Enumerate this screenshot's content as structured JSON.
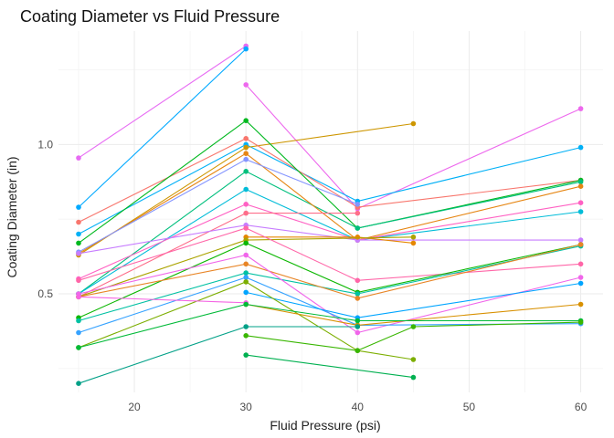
{
  "chart_data": {
    "type": "line",
    "title": "Coating Diameter vs Fluid Pressure",
    "xlabel": "Fluid Pressure (psi)",
    "ylabel": "Coating Diameter (in)",
    "xlim": [
      13.2,
      62.0
    ],
    "ylim": [
      0.17,
      1.38
    ],
    "x_ticks": [
      20,
      30,
      40,
      50,
      60
    ],
    "y_ticks": [
      0.5,
      1.0
    ],
    "y_tick_labels": [
      "0.5",
      "1.0"
    ],
    "grid": true,
    "legend": "none",
    "series": [
      {
        "color": "#e76bf3",
        "points": [
          [
            15,
            0.955
          ],
          [
            30,
            1.33
          ]
        ]
      },
      {
        "color": "#00a9ff",
        "points": [
          [
            15,
            0.79
          ],
          [
            30,
            1.32
          ]
        ]
      },
      {
        "color": "#ed68ed",
        "points": [
          [
            30,
            1.2
          ],
          [
            40,
            0.785
          ],
          [
            60,
            1.12
          ]
        ]
      },
      {
        "color": "#00b0f6",
        "points": [
          [
            15,
            0.7
          ],
          [
            30,
            1.0
          ],
          [
            40,
            0.81
          ],
          [
            60,
            0.99
          ]
        ]
      },
      {
        "color": "#cd9600",
        "points": [
          [
            15,
            0.63
          ],
          [
            30,
            0.99
          ],
          [
            45,
            1.07
          ]
        ]
      },
      {
        "color": "#f8766d",
        "points": [
          [
            15,
            0.74
          ],
          [
            30,
            1.02
          ],
          [
            40,
            0.79
          ],
          [
            60,
            0.88
          ]
        ]
      },
      {
        "color": "#00b81f",
        "points": [
          [
            15,
            0.67
          ],
          [
            30,
            1.08
          ],
          [
            40,
            0.72
          ],
          [
            60,
            0.88
          ]
        ]
      },
      {
        "color": "#00bf7d",
        "points": [
          [
            15,
            0.5
          ],
          [
            30,
            0.91
          ],
          [
            40,
            0.72
          ],
          [
            60,
            0.875
          ]
        ]
      },
      {
        "color": "#00bcd8",
        "points": [
          [
            15,
            0.5
          ],
          [
            30,
            0.85
          ],
          [
            40,
            0.68
          ],
          [
            60,
            0.775
          ]
        ]
      },
      {
        "color": "#e68613",
        "points": [
          [
            15,
            0.635
          ],
          [
            30,
            0.97
          ],
          [
            40,
            0.68
          ],
          [
            60,
            0.86
          ]
        ]
      },
      {
        "color": "#ff61c3",
        "points": [
          [
            15,
            0.55
          ],
          [
            30,
            0.8
          ],
          [
            40,
            0.68
          ],
          [
            60,
            0.805
          ]
        ]
      },
      {
        "color": "#8494ff",
        "points": [
          [
            15,
            0.64
          ],
          [
            30,
            0.95
          ],
          [
            40,
            0.8
          ]
        ]
      },
      {
        "color": "#fe6e8a",
        "points": [
          [
            15,
            0.49
          ],
          [
            30,
            0.77
          ],
          [
            40,
            0.77
          ]
        ]
      },
      {
        "color": "#c77cff",
        "points": [
          [
            15,
            0.635
          ],
          [
            30,
            0.73
          ],
          [
            40,
            0.68
          ],
          [
            60,
            0.68
          ]
        ]
      },
      {
        "color": "#e58700",
        "points": [
          [
            30,
            0.69
          ],
          [
            40,
            0.69
          ],
          [
            45,
            0.67
          ]
        ]
      },
      {
        "color": "#aba300",
        "points": [
          [
            15,
            0.49
          ],
          [
            30,
            0.68
          ],
          [
            45,
            0.69
          ]
        ]
      },
      {
        "color": "#ff66a8",
        "points": [
          [
            15,
            0.545
          ],
          [
            30,
            0.72
          ],
          [
            40,
            0.545
          ],
          [
            60,
            0.6
          ]
        ]
      },
      {
        "color": "#0cb702",
        "points": [
          [
            15,
            0.42
          ],
          [
            30,
            0.67
          ],
          [
            40,
            0.505
          ],
          [
            60,
            0.665
          ]
        ]
      },
      {
        "color": "#00c1a3",
        "points": [
          [
            15,
            0.41
          ],
          [
            30,
            0.57
          ],
          [
            40,
            0.5
          ],
          [
            60,
            0.66
          ]
        ]
      },
      {
        "color": "#e88526",
        "points": [
          [
            15,
            0.49
          ],
          [
            30,
            0.6
          ],
          [
            40,
            0.485
          ],
          [
            60,
            0.665
          ]
        ]
      },
      {
        "color": "#f066ea",
        "points": [
          [
            15,
            0.5
          ],
          [
            30,
            0.63
          ],
          [
            40,
            0.37
          ],
          [
            60,
            0.555
          ]
        ]
      },
      {
        "color": "#35a2ff",
        "points": [
          [
            15,
            0.37
          ],
          [
            30,
            0.555
          ],
          [
            40,
            0.395
          ],
          [
            60,
            0.4
          ]
        ]
      },
      {
        "color": "#00a5ff",
        "points": [
          [
            30,
            0.505
          ],
          [
            40,
            0.42
          ],
          [
            60,
            0.535
          ]
        ]
      },
      {
        "color": "#7cae00",
        "points": [
          [
            15,
            0.32
          ],
          [
            30,
            0.54
          ],
          [
            40,
            0.31
          ],
          [
            45,
            0.28
          ]
        ]
      },
      {
        "color": "#d89000",
        "points": [
          [
            30,
            0.465
          ],
          [
            40,
            0.395
          ],
          [
            60,
            0.465
          ]
        ]
      },
      {
        "color": "#f564e3",
        "points": [
          [
            15,
            0.49
          ],
          [
            30,
            0.47
          ]
        ]
      },
      {
        "color": "#00ba38",
        "points": [
          [
            15,
            0.32
          ],
          [
            30,
            0.465
          ],
          [
            40,
            0.41
          ],
          [
            60,
            0.41
          ]
        ]
      },
      {
        "color": "#00a087",
        "points": [
          [
            15,
            0.2
          ],
          [
            30,
            0.39
          ],
          [
            40,
            0.39
          ]
        ]
      },
      {
        "color": "#39b600",
        "points": [
          [
            30,
            0.36
          ],
          [
            40,
            0.31
          ],
          [
            45,
            0.39
          ],
          [
            60,
            0.405
          ]
        ]
      },
      {
        "color": "#00b050",
        "points": [
          [
            30,
            0.295
          ],
          [
            45,
            0.22
          ]
        ]
      }
    ]
  }
}
